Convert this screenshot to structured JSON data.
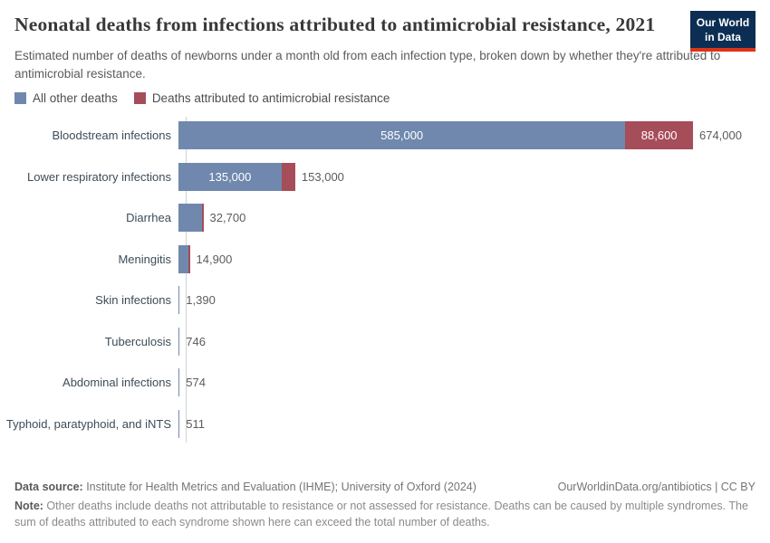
{
  "header": {
    "title": "Neonatal deaths from infections attributed to antimicrobial resistance, 2021",
    "subtitle": "Estimated number of deaths of newborns under a month old from each infection type, broken down by whether they're attributed to antimicrobial resistance.",
    "logo": {
      "line1": "Our World",
      "line2": "in Data",
      "bg_color": "#0d2e54",
      "accent_color": "#dc3418"
    }
  },
  "legend": {
    "items": [
      {
        "label": "All other deaths",
        "color": "#7088ad"
      },
      {
        "label": "Deaths attributed to antimicrobial resistance",
        "color": "#a64d5a"
      }
    ]
  },
  "chart_data": {
    "type": "bar",
    "orientation": "horizontal",
    "title": "Neonatal deaths from infections attributed to antimicrobial resistance, 2021",
    "xlim": [
      0,
      700000
    ],
    "grid": false,
    "legend_position": "top",
    "categories": [
      "Bloodstream infections",
      "Lower respiratory infections",
      "Diarrhea",
      "Meningitis",
      "Skin infections",
      "Tuberculosis",
      "Abdominal infections",
      "Typhoid, paratyphoid, and iNTS"
    ],
    "series": [
      {
        "name": "All other deaths",
        "color": "#7088ad",
        "values": [
          585000,
          135000,
          null,
          null,
          null,
          null,
          null,
          null
        ]
      },
      {
        "name": "Deaths attributed to antimicrobial resistance",
        "color": "#a64d5a",
        "values": [
          88600,
          18000,
          null,
          null,
          null,
          null,
          null,
          null
        ]
      }
    ],
    "totals": [
      674000,
      153000,
      32700,
      14900,
      1390,
      746,
      574,
      511
    ],
    "rows": [
      {
        "category": "Bloodstream infections",
        "other": 585000,
        "amr": 88600,
        "total": 674000,
        "other_label": "585,000",
        "amr_label": "88,600",
        "total_label": "674,000",
        "red_sliver": false
      },
      {
        "category": "Lower respiratory infections",
        "other": 135000,
        "amr": 18000,
        "total": 153000,
        "other_label": "135,000",
        "amr_label": null,
        "total_label": "153,000",
        "red_sliver": false
      },
      {
        "category": "Diarrhea",
        "other": null,
        "amr": null,
        "total": 32700,
        "other_label": null,
        "amr_label": null,
        "total_label": "32,700",
        "red_sliver": true
      },
      {
        "category": "Meningitis",
        "other": null,
        "amr": null,
        "total": 14900,
        "other_label": null,
        "amr_label": null,
        "total_label": "14,900",
        "red_sliver": true
      },
      {
        "category": "Skin infections",
        "other": null,
        "amr": null,
        "total": 1390,
        "other_label": null,
        "amr_label": null,
        "total_label": "1,390",
        "red_sliver": false
      },
      {
        "category": "Tuberculosis",
        "other": null,
        "amr": null,
        "total": 746,
        "other_label": null,
        "amr_label": null,
        "total_label": "746",
        "red_sliver": false
      },
      {
        "category": "Abdominal infections",
        "other": null,
        "amr": null,
        "total": 574,
        "other_label": null,
        "amr_label": null,
        "total_label": "574",
        "red_sliver": false
      },
      {
        "category": "Typhoid, paratyphoid, and iNTS",
        "other": null,
        "amr": null,
        "total": 511,
        "other_label": null,
        "amr_label": null,
        "total_label": "511",
        "red_sliver": false
      }
    ]
  },
  "footer": {
    "data_source_label": "Data source:",
    "data_source_text": " Institute for Health Metrics and Evaluation (IHME); University of Oxford (2024)",
    "attribution": "OurWorldinData.org/antibiotics | CC BY",
    "note_label": "Note:",
    "note_text": " Other deaths include deaths not attributable to resistance or not assessed for resistance. Deaths can be caused by multiple syndromes. The sum of deaths attributed to each syndrome shown here can exceed the total number of deaths."
  }
}
